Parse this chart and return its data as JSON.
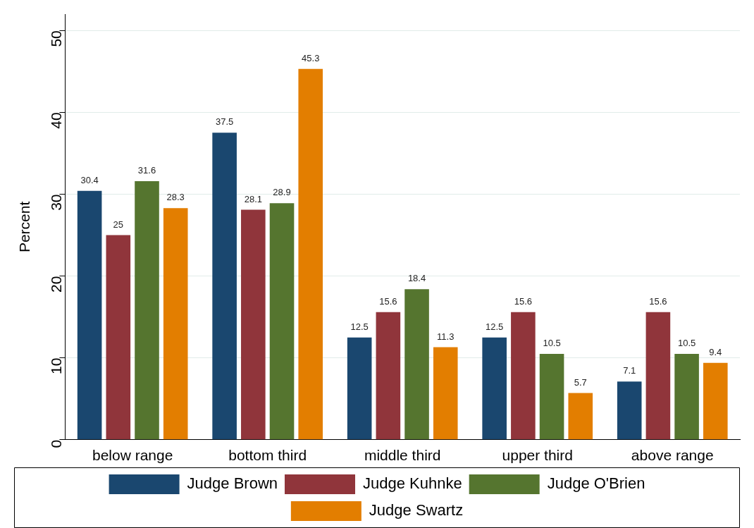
{
  "chart_data": {
    "type": "bar",
    "ylabel": "Percent",
    "categories": [
      "below range",
      "bottom third",
      "middle third",
      "upper third",
      "above range"
    ],
    "series": [
      {
        "name": "Judge Brown",
        "color": "#1a476f",
        "values": [
          30.4,
          37.5,
          12.5,
          12.5,
          7.1
        ]
      },
      {
        "name": "Judge Kuhnke",
        "color": "#90353b",
        "values": [
          25,
          28.1,
          15.6,
          15.6,
          15.6
        ]
      },
      {
        "name": "Judge O'Brien",
        "color": "#55752f",
        "values": [
          31.6,
          28.9,
          18.4,
          10.5,
          10.5
        ]
      },
      {
        "name": "Judge Swartz",
        "color": "#e37e00",
        "values": [
          28.3,
          45.3,
          11.3,
          5.7,
          9.4
        ]
      }
    ],
    "ylim": [
      0,
      52
    ],
    "yticks": [
      0,
      10,
      20,
      30,
      40,
      50
    ],
    "grid": "y",
    "legend": "bottom",
    "data_labels": true
  }
}
